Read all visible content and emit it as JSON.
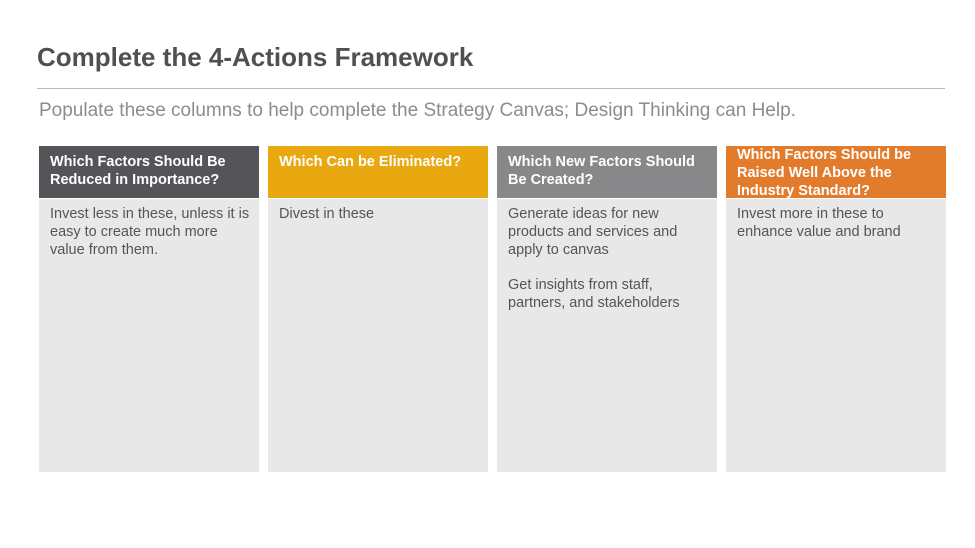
{
  "slide": {
    "title": "Complete the 4-Actions Framework",
    "subtitle": "Populate these columns to help complete the Strategy Canvas; Design Thinking can Help."
  },
  "columns": [
    {
      "header": "Which Factors Should Be Reduced in Importance?",
      "header_color": "#545459",
      "body": [
        "Invest less in these, unless it is easy to create much more value from them."
      ]
    },
    {
      "header": "Which Can be Eliminated?",
      "header_color": "#e9a80f",
      "body": [
        "Divest in these"
      ]
    },
    {
      "header": "Which New Factors Should Be Created?",
      "header_color": "#88888a",
      "body": [
        "Generate ideas for new products and services and apply to canvas",
        "Get insights from staff, partners, and stakeholders"
      ]
    },
    {
      "header": "Which Factors Should be Raised Well Above the Industry Standard?",
      "header_color": "#e37b2d",
      "body": [
        "Invest more in these to enhance value and brand"
      ]
    }
  ]
}
